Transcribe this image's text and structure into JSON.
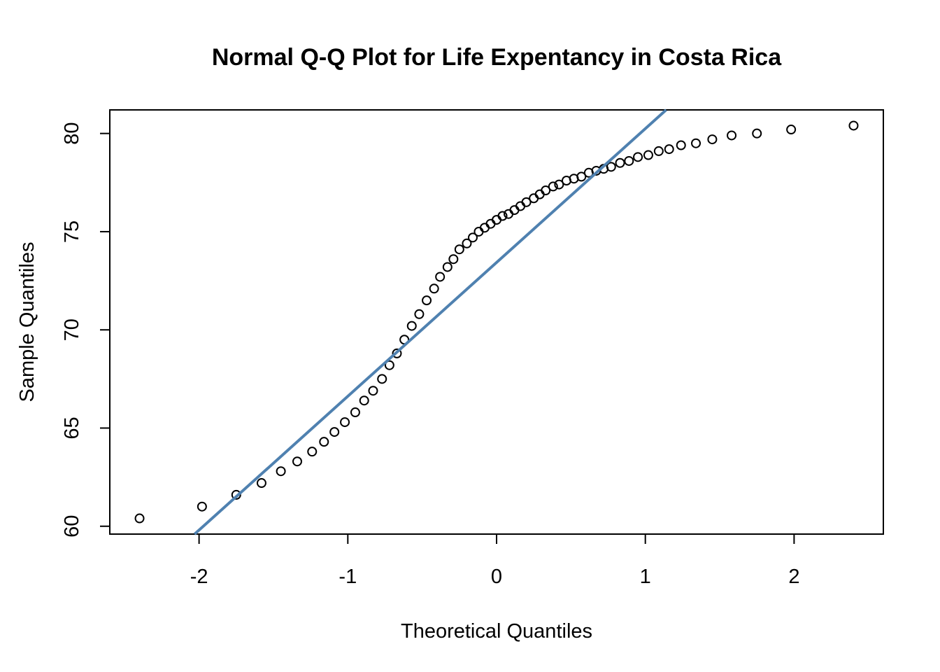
{
  "chart_data": {
    "type": "scatter",
    "title": "Normal Q-Q Plot for Life Expentancy in Costa Rica",
    "xlabel": "Theoretical Quantiles",
    "ylabel": "Sample Quantiles",
    "xlim": [
      -2.6,
      2.6
    ],
    "ylim": [
      59.6,
      81.2
    ],
    "xticks": [
      -2,
      -1,
      0,
      1,
      2
    ],
    "xtick_labels": [
      "-2",
      "-1",
      "0",
      "1",
      "2"
    ],
    "yticks": [
      60,
      65,
      70,
      75,
      80
    ],
    "ytick_labels": [
      "60",
      "65",
      "70",
      "75",
      "80"
    ],
    "grid": false,
    "colors": {
      "points": "#000000",
      "qq_line": "#4f81b0"
    },
    "series": [
      {
        "kind": "points",
        "x": [
          -2.4,
          -1.98,
          -1.75,
          -1.58,
          -1.45,
          -1.34,
          -1.24,
          -1.16,
          -1.09,
          -1.02,
          -0.95,
          -0.89,
          -0.83,
          -0.77,
          -0.72,
          -0.67,
          -0.62,
          -0.57,
          -0.52,
          -0.47,
          -0.42,
          -0.38,
          -0.33,
          -0.29,
          -0.25,
          -0.2,
          -0.16,
          -0.12,
          -0.08,
          -0.04,
          0.0,
          0.04,
          0.08,
          0.12,
          0.16,
          0.2,
          0.25,
          0.29,
          0.33,
          0.38,
          0.42,
          0.47,
          0.52,
          0.57,
          0.62,
          0.67,
          0.72,
          0.77,
          0.83,
          0.89,
          0.95,
          1.02,
          1.09,
          1.16,
          1.24,
          1.34,
          1.45,
          1.58,
          1.75,
          1.98,
          2.4
        ],
        "y": [
          60.4,
          61.0,
          61.6,
          62.2,
          62.8,
          63.3,
          63.8,
          64.3,
          64.8,
          65.3,
          65.8,
          66.4,
          66.9,
          67.5,
          68.2,
          68.8,
          69.5,
          70.2,
          70.8,
          71.5,
          72.1,
          72.7,
          73.2,
          73.6,
          74.1,
          74.4,
          74.7,
          75.0,
          75.2,
          75.4,
          75.6,
          75.8,
          75.9,
          76.1,
          76.3,
          76.5,
          76.7,
          76.9,
          77.1,
          77.3,
          77.4,
          77.6,
          77.7,
          77.8,
          78.0,
          78.1,
          78.2,
          78.3,
          78.5,
          78.6,
          78.8,
          78.9,
          79.1,
          79.2,
          79.4,
          79.5,
          79.7,
          79.9,
          80.0,
          80.2,
          80.4
        ]
      },
      {
        "kind": "qq-line",
        "x": [
          -2.03,
          1.14
        ],
        "y": [
          59.6,
          81.2
        ]
      }
    ]
  }
}
